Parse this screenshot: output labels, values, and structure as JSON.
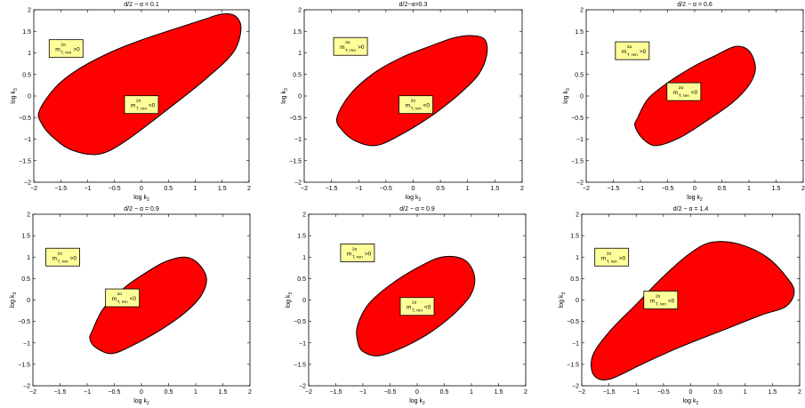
{
  "chart_data": [
    {
      "type": "area",
      "title": "d/2 − α = 0.1",
      "xlabel": "log k",
      "xlabel_sub": "2",
      "ylabel": "log k",
      "ylabel_sub": "3",
      "xlim": [
        -2,
        2
      ],
      "ylim": [
        -2,
        2
      ],
      "xticks": [
        "−2",
        "−1.5",
        "−1",
        "−0.5",
        "0",
        "0.5",
        "1",
        "1.5",
        "2"
      ],
      "yticks": [
        "−2",
        "−1.5",
        "−1",
        "−0.5",
        "0",
        "0.5",
        "1",
        "1.5",
        "2"
      ],
      "fill_color": "#ff0000",
      "region": {
        "x": [
          -1.9,
          -1.6,
          -1.2,
          -0.6,
          0.0,
          0.6,
          1.1,
          1.5,
          1.75,
          1.85,
          1.7,
          1.2,
          0.6,
          -0.3,
          -0.8,
          -1.3,
          -1.65,
          -1.85
        ],
        "y": [
          -0.35,
          0.2,
          0.6,
          1.0,
          1.3,
          1.55,
          1.75,
          1.9,
          1.85,
          1.55,
          1.0,
          0.4,
          -0.2,
          -1.05,
          -1.35,
          -1.25,
          -0.95,
          -0.65
        ]
      },
      "annotations": [
        {
          "base": "m",
          "sup": "2α",
          "sub": "T, ren",
          "relation": ">0",
          "x": -1.4,
          "y": 1.1
        },
        {
          "base": "m",
          "sup": "2α",
          "sub": "T, ren",
          "relation": "<0",
          "x": 0.0,
          "y": -0.2
        }
      ]
    },
    {
      "type": "area",
      "title": "d/2−α=0.3",
      "xlabel": "log k",
      "xlabel_sub": "2",
      "ylabel": "log k",
      "ylabel_sub": "3",
      "xlim": [
        -2,
        2
      ],
      "ylim": [
        -2,
        2
      ],
      "xticks": [
        "−2",
        "−1.5",
        "−1",
        "−0.5",
        "0",
        "0.5",
        "1",
        "1.5",
        "2"
      ],
      "yticks": [
        "−2",
        "−1.5",
        "−1",
        "−0.5",
        "0",
        "0.5",
        "1",
        "1.5",
        "2"
      ],
      "fill_color": "#ff0000",
      "region": {
        "x": [
          -1.4,
          -1.15,
          -0.7,
          -0.2,
          0.3,
          0.75,
          1.1,
          1.32,
          1.35,
          1.2,
          0.85,
          0.35,
          -0.3,
          -0.7,
          -1.05,
          -1.3
        ],
        "y": [
          -0.5,
          0.05,
          0.55,
          0.9,
          1.15,
          1.35,
          1.4,
          1.3,
          0.95,
          0.5,
          0.05,
          -0.45,
          -0.95,
          -1.15,
          -1.05,
          -0.8
        ]
      },
      "annotations": [
        {
          "base": "m",
          "sup": "2α",
          "sub": "T, ren",
          "relation": ">0",
          "x": -1.15,
          "y": 1.15
        },
        {
          "base": "m",
          "sup": "2α",
          "sub": "T, ren",
          "relation": "<0",
          "x": 0.05,
          "y": -0.2
        }
      ]
    },
    {
      "type": "area",
      "title": "d/2 − α = 0.6",
      "xlabel": "log k",
      "xlabel_sub": "2",
      "ylabel": "log k",
      "ylabel_sub": "3",
      "xlim": [
        -2,
        2
      ],
      "ylim": [
        -2,
        2
      ],
      "xticks": [
        "−2",
        "−1.5",
        "−1",
        "−0.5",
        "0",
        "0.5",
        "1",
        "1.5",
        "2"
      ],
      "yticks": [
        "−2",
        "−1.5",
        "−1",
        "−0.5",
        "0",
        "0.5",
        "1",
        "1.5",
        "2"
      ],
      "fill_color": "#ff0000",
      "region": {
        "x": [
          -1.05,
          -0.85,
          -0.45,
          0.0,
          0.4,
          0.75,
          1.0,
          1.12,
          1.0,
          0.7,
          0.25,
          -0.25,
          -0.7,
          -0.95,
          -1.1
        ],
        "y": [
          -0.5,
          -0.05,
          0.35,
          0.7,
          0.95,
          1.15,
          1.05,
          0.65,
          0.25,
          -0.15,
          -0.55,
          -0.95,
          -1.15,
          -1.0,
          -0.7
        ]
      },
      "annotations": [
        {
          "base": "m",
          "sup": "2α",
          "sub": "T, ren",
          "relation": ">0",
          "x": -1.15,
          "y": 1.05
        },
        {
          "base": "m",
          "sup": "2α",
          "sub": "T, ren",
          "relation": "<0",
          "x": -0.2,
          "y": 0.1
        }
      ]
    },
    {
      "type": "area",
      "title": "d/2 − α = 0.9",
      "xlabel": "log k",
      "xlabel_sub": "2",
      "ylabel": "log k",
      "ylabel_sub": "3",
      "xlim": [
        -2,
        2
      ],
      "ylim": [
        -2,
        2
      ],
      "xticks": [
        "−2",
        "−1.5",
        "−1",
        "−0.5",
        "0",
        "0.5",
        "1",
        "1.5",
        "2"
      ],
      "yticks": [
        "−2",
        "−1.5",
        "−1",
        "−0.5",
        "0",
        "0.5",
        "1",
        "1.5",
        "2"
      ],
      "fill_color": "#ff0000",
      "region": {
        "x": [
          -0.9,
          -0.7,
          -0.3,
          0.1,
          0.45,
          0.8,
          1.05,
          1.2,
          1.1,
          0.8,
          0.35,
          -0.15,
          -0.55,
          -0.85,
          -0.95
        ],
        "y": [
          -0.7,
          -0.2,
          0.3,
          0.65,
          0.9,
          1.0,
          0.85,
          0.5,
          0.1,
          -0.3,
          -0.7,
          -1.05,
          -1.25,
          -1.1,
          -0.9
        ]
      },
      "annotations": [
        {
          "base": "m",
          "sup": "2α",
          "sub": "T, ren",
          "relation": ">0",
          "x": -1.45,
          "y": 1.0
        },
        {
          "base": "m",
          "sup": "2α",
          "sub": "T, ren",
          "relation": "<0",
          "x": -0.35,
          "y": 0.05
        }
      ]
    },
    {
      "type": "area",
      "title": "d/2 − α = 0.9",
      "xlabel": "log k",
      "xlabel_sub": "2",
      "ylabel": "log k",
      "ylabel_sub": "3",
      "xlim": [
        -2,
        2
      ],
      "ylim": [
        -2,
        2
      ],
      "xticks": [
        "−2",
        "−1.5",
        "−1",
        "−0.5",
        "0",
        "0.5",
        "1",
        "1.5",
        "2"
      ],
      "yticks": [
        "−2",
        "−1.5",
        "−1",
        "−0.5",
        "0",
        "0.5",
        "1",
        "1.5",
        "2"
      ],
      "fill_color": "#ff0000",
      "region": {
        "x": [
          -1.1,
          -0.9,
          -0.5,
          0.0,
          0.45,
          0.85,
          1.05,
          1.0,
          0.7,
          0.25,
          -0.25,
          -0.7,
          -1.0,
          -1.1
        ],
        "y": [
          -0.6,
          -0.1,
          0.35,
          0.75,
          1.0,
          0.95,
          0.6,
          0.15,
          -0.3,
          -0.75,
          -1.1,
          -1.3,
          -1.2,
          -0.95
        ]
      },
      "annotations": [
        {
          "base": "m",
          "sup": "2α",
          "sub": "T, ren",
          "relation": ">0",
          "x": -1.1,
          "y": 1.1
        },
        {
          "base": "m",
          "sup": "2α",
          "sub": "T, ren",
          "relation": "<0",
          "x": 0.0,
          "y": -0.15
        }
      ]
    },
    {
      "type": "area",
      "title": "d/2 − α = 1.4",
      "xlabel": "log k",
      "xlabel_sub": "2",
      "ylabel": "log k",
      "ylabel_sub": "3",
      "xlim": [
        -2,
        2
      ],
      "ylim": [
        -2,
        2
      ],
      "xticks": [
        "−2",
        "−1.5",
        "−1",
        "−0.5",
        "0",
        "0.5",
        "1",
        "1.5",
        "2"
      ],
      "yticks": [
        "−2",
        "−1.5",
        "−1",
        "−0.5",
        "0",
        "0.5",
        "1",
        "1.5",
        "2"
      ],
      "fill_color": "#ff0000",
      "region": {
        "x": [
          -1.8,
          -1.5,
          -1.0,
          -0.5,
          0.0,
          0.4,
          0.9,
          1.4,
          1.75,
          1.9,
          1.75,
          1.3,
          0.6,
          -0.2,
          -0.9,
          -1.5,
          -1.78
        ],
        "y": [
          -1.3,
          -0.75,
          -0.1,
          0.55,
          1.1,
          1.35,
          1.3,
          1.0,
          0.55,
          0.2,
          -0.15,
          -0.35,
          -0.7,
          -1.1,
          -1.5,
          -1.85,
          -1.75
        ]
      },
      "annotations": [
        {
          "base": "m",
          "sup": "2α",
          "sub": "T, ren",
          "relation": ">0",
          "x": -1.45,
          "y": 1.0
        },
        {
          "base": "m",
          "sup": "2α",
          "sub": "T, ren",
          "relation": "<0",
          "x": -0.55,
          "y": 0.0
        }
      ]
    }
  ]
}
